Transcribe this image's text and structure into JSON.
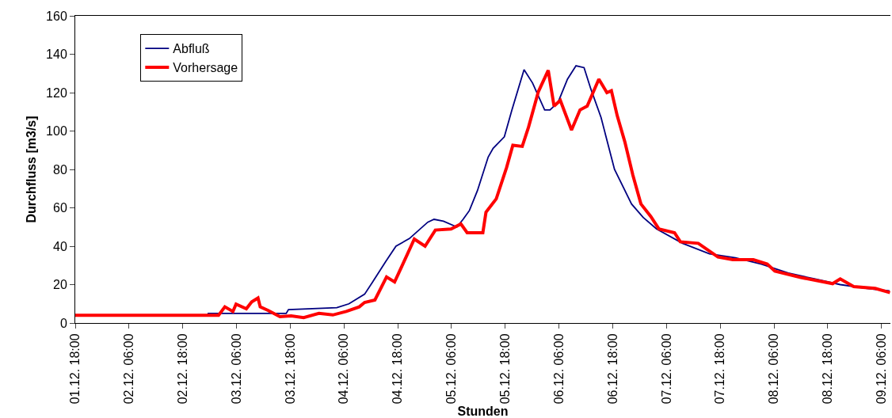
{
  "chart_data": {
    "type": "line",
    "xlabel": "Stunden",
    "ylabel": "Durchfluss [m3/s]",
    "xlim": [
      "--12-01T18:00",
      "--12-09T08:00"
    ],
    "ylim": [
      0,
      160
    ],
    "yticks": [
      0,
      20,
      40,
      60,
      80,
      100,
      120,
      140,
      160
    ],
    "xticks": [
      {
        "value": "--12-01T18:00",
        "label": "01.12. 18:00"
      },
      {
        "value": "--12-02T06:00",
        "label": "02.12. 06:00"
      },
      {
        "value": "--12-02T18:00",
        "label": "02.12. 18:00"
      },
      {
        "value": "--12-03T06:00",
        "label": "03.12. 06:00"
      },
      {
        "value": "--12-03T18:00",
        "label": "03.12. 18:00"
      },
      {
        "value": "--12-04T06:00",
        "label": "04.12. 06:00"
      },
      {
        "value": "--12-04T18:00",
        "label": "04.12. 18:00"
      },
      {
        "value": "--12-05T06:00",
        "label": "05.12. 06:00"
      },
      {
        "value": "--12-05T18:00",
        "label": "05.12. 18:00"
      },
      {
        "value": "--12-06T06:00",
        "label": "06.12. 06:00"
      },
      {
        "value": "--12-06T18:00",
        "label": "06.12. 18:00"
      },
      {
        "value": "--12-07T06:00",
        "label": "07.12. 06:00"
      },
      {
        "value": "--12-07T18:00",
        "label": "07.12. 18:00"
      },
      {
        "value": "--12-08T06:00",
        "label": "08.12. 06:00"
      },
      {
        "value": "--12-08T18:00",
        "label": "08.12. 18:00"
      },
      {
        "value": "--12-09T06:00",
        "label": "09.12. 06:00"
      }
    ],
    "grid": false,
    "legend": "top left",
    "marker": "none",
    "line_style": "solid",
    "series": [
      {
        "name": "Abfluß",
        "color": "#000080",
        "x": [
          "--12-01T18:00",
          "--12-02T23:30",
          "--12-02T23:42",
          "--12-03T17:06",
          "--12-03T17:36",
          "--12-04T04:24",
          "--12-04T07:06",
          "--12-04T10:36",
          "--12-04T12:18",
          "--12-04T15:18",
          "--12-04T17:36",
          "--12-04T20:36",
          "--12-05T00:42",
          "--12-05T02:06",
          "--12-05T04:12",
          "--12-05T07:12",
          "--12-05T08:36",
          "--12-05T10:00",
          "--12-05T11:48",
          "--12-05T14:12",
          "--12-05T15:18",
          "--12-05T17:48",
          "--12-05T19:30",
          "--12-05T22:12",
          "--12-06T00:06",
          "--12-06T02:48",
          "--12-06T04:00",
          "--12-06T05:48",
          "--12-06T07:54",
          "--12-06T09:48",
          "--12-06T11:36",
          "--12-06T13:06",
          "--12-06T15:24",
          "--12-06T18:24",
          "--12-06T22:12",
          "--12-07T00:48",
          "--12-07T03:48",
          "--12-07T09:36",
          "--12-07T15:36",
          "--12-07T21:24",
          "--12-08T03:12",
          "--12-08T09:12",
          "--12-08T15:00",
          "--12-08T20:48",
          "--12-09T02:48",
          "--12-09T07:48"
        ],
        "values": [
          4,
          4,
          5,
          5,
          7,
          8,
          10,
          15,
          21,
          32,
          40,
          44,
          52.5,
          54,
          53,
          50,
          54,
          58.6,
          69,
          86.5,
          91,
          97,
          111,
          132,
          125,
          111,
          111,
          115,
          127,
          134,
          133,
          122,
          107,
          80,
          62,
          55,
          49,
          41.5,
          36,
          34,
          30.7,
          26,
          23,
          20,
          18,
          16.7
        ]
      },
      {
        "name": "Vorhersage",
        "color": "#ff0000",
        "x": [
          "--12-01T18:00",
          "--12-03T02:00",
          "--12-03T03:24",
          "--12-03T05:12",
          "--12-03T05:54",
          "--12-03T08:12",
          "--12-03T09:24",
          "--12-03T10:48",
          "--12-03T11:18",
          "--12-03T13:06",
          "--12-03T15:42",
          "--12-03T18:12",
          "--12-03T21:00",
          "--12-04T00:24",
          "--12-04T03:30",
          "--12-04T06:30",
          "--12-04T09:24",
          "--12-04T10:36",
          "--12-04T12:54",
          "--12-04T15:30",
          "--12-04T17:18",
          "--12-04T19:24",
          "--12-04T21:42",
          "--12-05T00:06",
          "--12-05T02:24",
          "--12-05T05:54",
          "--12-05T08:06",
          "--12-05T09:30",
          "--12-05T13:00",
          "--12-05T13:42",
          "--12-05T16:00",
          "--12-05T18:18",
          "--12-05T19:42",
          "--12-05T21:48",
          "--12-05T23:12",
          "--12-06T01:24",
          "--12-06T03:36",
          "--12-06T04:54",
          "--12-06T06:18",
          "--12-06T08:48",
          "--12-06T10:42",
          "--12-06T12:18",
          "--12-06T14:54",
          "--12-06T16:42",
          "--12-06T17:42",
          "--12-06T19:00",
          "--12-06T20:42",
          "--12-06T22:30",
          "--12-07T00:18",
          "--12-07T02:30",
          "--12-07T04:18",
          "--12-07T07:48",
          "--12-07T09:06",
          "--12-07T13:06",
          "--12-07T17:30",
          "--12-07T20:48",
          "--12-08T01:24",
          "--12-08T04:30",
          "--12-08T06:12",
          "--12-08T12:00",
          "--12-08T19:06",
          "--12-08T20:48",
          "--12-08T23:48",
          "--12-09T04:36",
          "--12-09T07:54"
        ],
        "values": [
          4,
          4,
          8.4,
          6,
          9.8,
          7.4,
          11,
          13,
          8.4,
          6.5,
          3.3,
          3.7,
          2.8,
          5,
          4.2,
          6,
          8.4,
          10.7,
          12,
          24,
          21.4,
          32,
          43.7,
          40,
          48.4,
          49,
          51.6,
          47,
          47,
          57.7,
          64.7,
          81,
          92.6,
          92,
          102,
          120.5,
          131.6,
          113,
          116,
          100.5,
          111,
          113,
          127,
          120,
          121,
          108,
          94.4,
          77,
          62,
          55.5,
          49,
          47,
          42.3,
          41.5,
          34.4,
          33,
          33,
          30.7,
          27,
          23.7,
          20.5,
          23,
          19,
          18,
          15.8
        ]
      }
    ]
  }
}
